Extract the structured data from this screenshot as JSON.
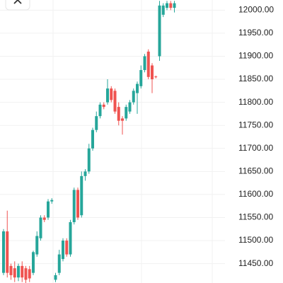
{
  "chart_data": {
    "type": "candlestick",
    "open": [
      11430,
      11520,
      11445,
      11440,
      11420,
      11445,
      11440,
      11438,
      11430,
      11470,
      11505,
      11550,
      11550,
      11585,
      11415,
      11430,
      11460,
      11500,
      11470,
      11540,
      11610,
      11555,
      11640,
      11650,
      11700,
      11740,
      11770,
      11795,
      11800,
      11830,
      11825,
      11790,
      11765,
      11765,
      11780,
      11800,
      11820,
      11835,
      11870,
      11910,
      11880,
      11856,
      11900,
      11990,
      12005,
      12015,
      12005
    ],
    "high": [
      11525,
      11565,
      11450,
      11455,
      11450,
      11455,
      11445,
      11445,
      11478,
      11520,
      11555,
      11555,
      11590,
      11592,
      11430,
      11480,
      11505,
      11505,
      11545,
      11615,
      11615,
      11650,
      11655,
      11710,
      11745,
      11780,
      11800,
      11800,
      11850,
      11835,
      11830,
      11800,
      11770,
      11795,
      11805,
      11830,
      11845,
      11880,
      11905,
      11915,
      11885,
      11858,
      12020,
      12015,
      12020,
      12020,
      12020
    ],
    "low": [
      11425,
      11420,
      11415,
      11410,
      11412,
      11410,
      11408,
      11410,
      11425,
      11465,
      11500,
      11540,
      11545,
      11580,
      11410,
      11425,
      11455,
      11465,
      11465,
      11535,
      11545,
      11550,
      11630,
      11645,
      11695,
      11735,
      11765,
      11785,
      11795,
      11800,
      11775,
      11750,
      11730,
      11760,
      11775,
      11795,
      11775,
      11830,
      11865,
      11850,
      11820,
      11852,
      11890,
      11985,
      12000,
      12000,
      11995
    ],
    "close": [
      11520,
      11430,
      11425,
      11420,
      11445,
      11420,
      11415,
      11418,
      11475,
      11510,
      11550,
      11545,
      11585,
      11588,
      11425,
      11470,
      11500,
      11470,
      11540,
      11610,
      11550,
      11640,
      11650,
      11700,
      11740,
      11770,
      11795,
      11790,
      11830,
      11805,
      11780,
      11760,
      11760,
      11790,
      11800,
      11825,
      11840,
      11870,
      11900,
      11855,
      11850,
      11855,
      12010,
      12010,
      12015,
      12005,
      12015
    ],
    "rising_color": "#26a69a",
    "falling_color": "#ef5350",
    "ylim": [
      11408,
      12022
    ],
    "yticks": [
      {
        "value": 11450,
        "label": "11450.00"
      },
      {
        "value": 11500,
        "label": "11500.00"
      },
      {
        "value": 11550,
        "label": "11550.00"
      },
      {
        "value": 11600,
        "label": "11600.00"
      },
      {
        "value": 11650,
        "label": "11650.00"
      },
      {
        "value": 11700,
        "label": "11700.00"
      },
      {
        "value": 11750,
        "label": "11750.00"
      },
      {
        "value": 11800,
        "label": "11800.00"
      },
      {
        "value": 11850,
        "label": "11850.00"
      },
      {
        "value": 11900,
        "label": "11900.00"
      },
      {
        "value": 11950,
        "label": "11950.00"
      },
      {
        "value": 12000,
        "label": "12000.00"
      }
    ],
    "grid": true
  }
}
